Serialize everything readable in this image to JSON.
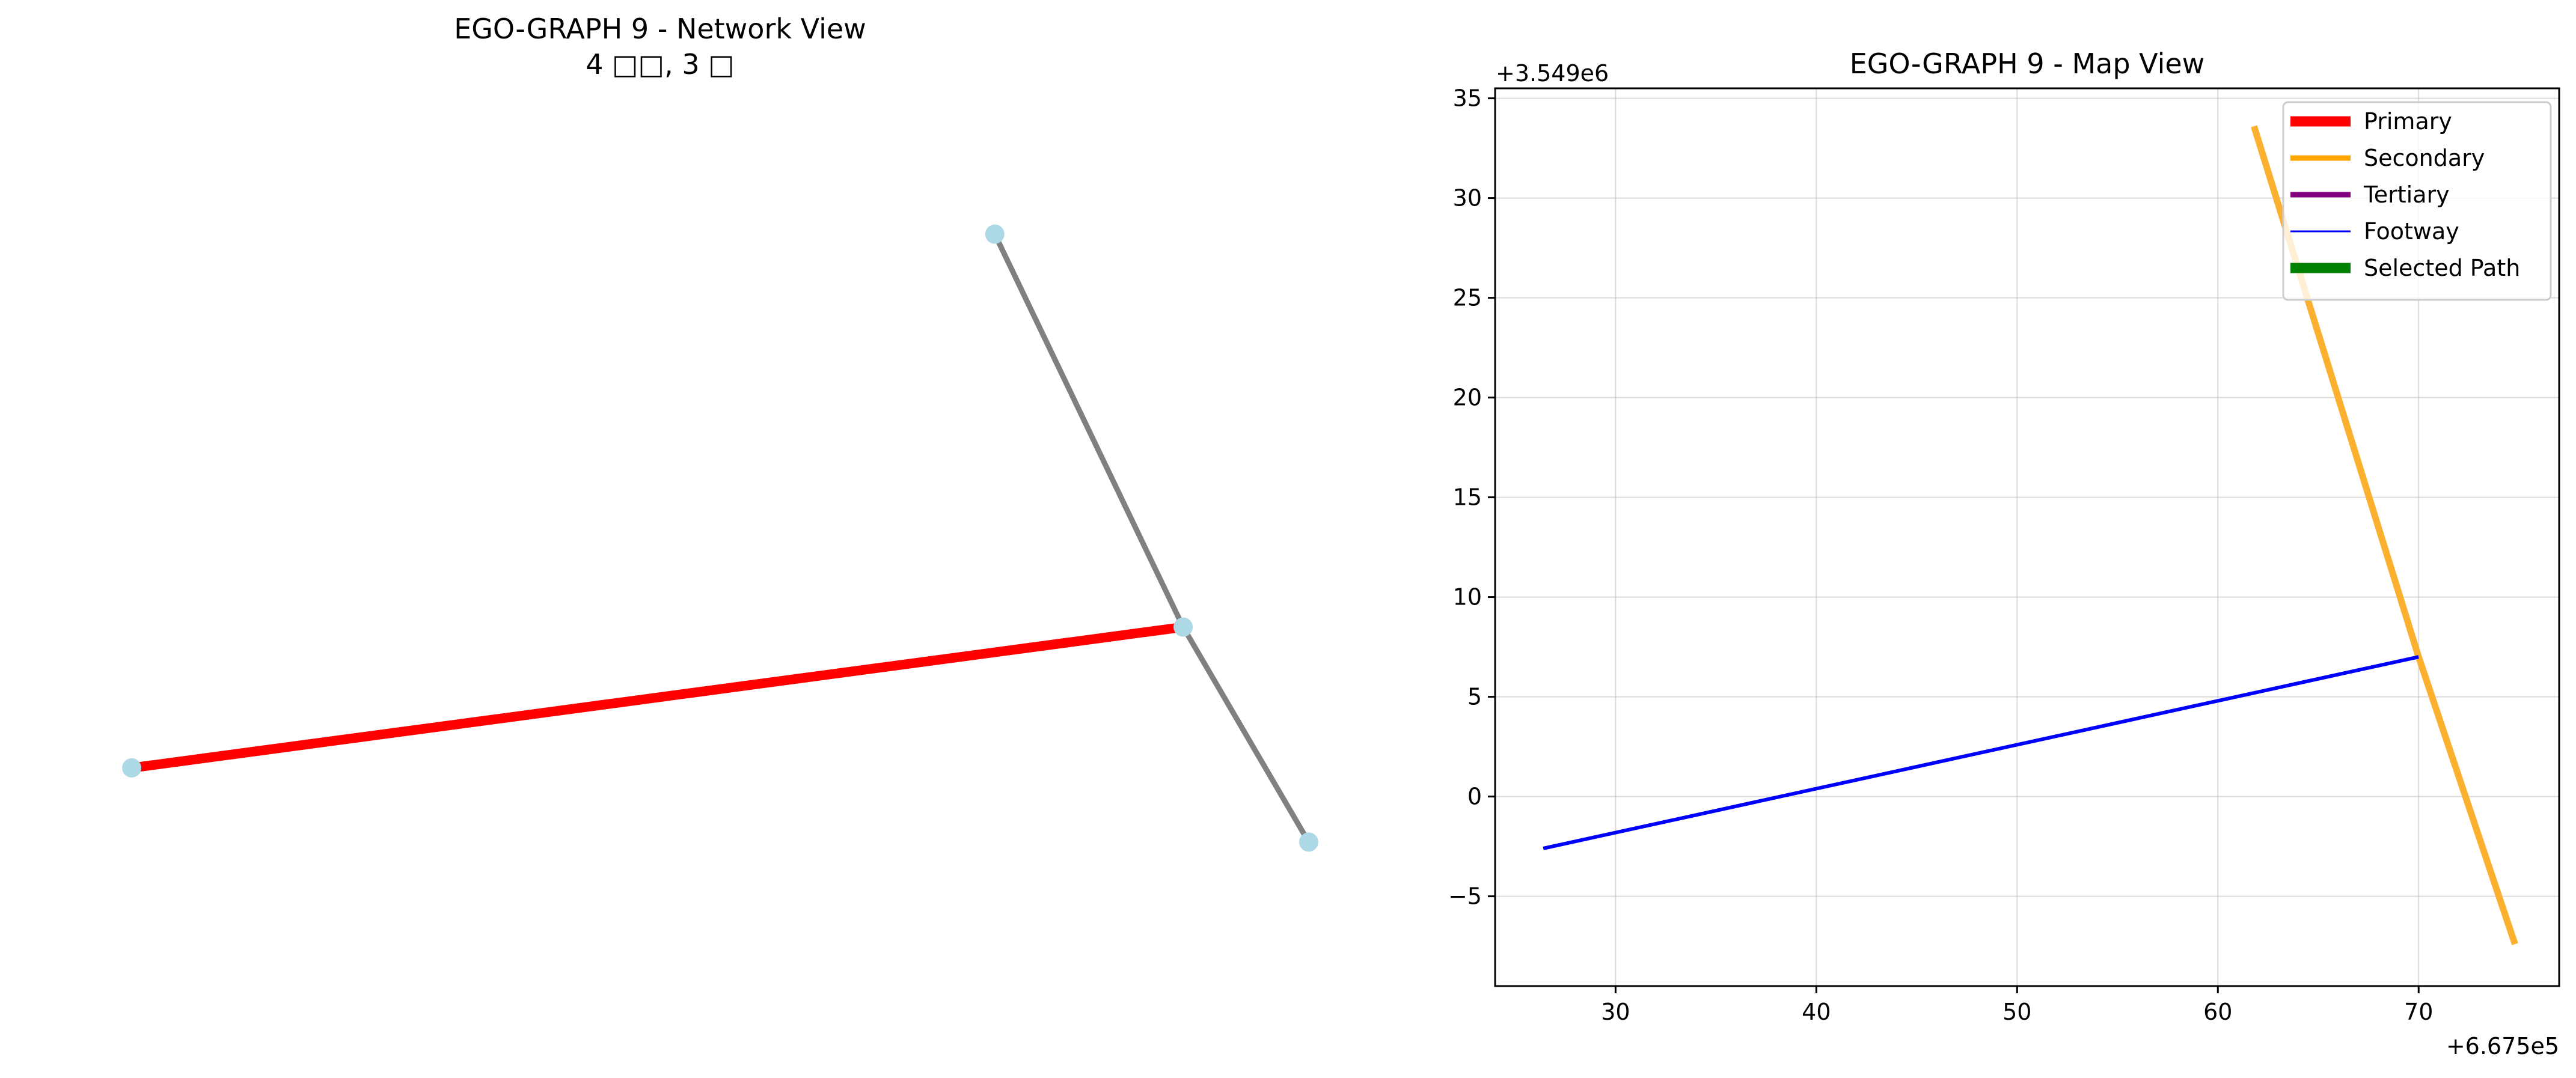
{
  "chart_data": [
    {
      "type": "network",
      "title": "EGO-GRAPH 9 - Network View",
      "subtitle": "4 □□, 3 □",
      "node_color": "#add8e6",
      "nodes": [
        {
          "id": "n1",
          "x": 0.09,
          "y": 0.0
        },
        {
          "id": "n2",
          "x": 0.76,
          "y": 0.19
        },
        {
          "id": "n3",
          "x": 0.64,
          "y": 0.72
        },
        {
          "id": "n4",
          "x": 0.84,
          "y": -0.1
        }
      ],
      "edges": [
        {
          "source": "n1",
          "target": "n2",
          "color": "#ff0000",
          "width": "thick"
        },
        {
          "source": "n3",
          "target": "n2",
          "color": "#808080",
          "width": "medium"
        },
        {
          "source": "n2",
          "target": "n4",
          "color": "#808080",
          "width": "medium"
        }
      ]
    },
    {
      "type": "line",
      "title": "EGO-GRAPH 9 - Map View",
      "xlim": [
        24,
        77
      ],
      "ylim": [
        -9.5,
        35.5
      ],
      "x_offset_label": "+6.675e5",
      "y_offset_label": "+3.549e6",
      "x_ticks": [
        30,
        40,
        50,
        60,
        70
      ],
      "y_ticks": [
        35,
        30,
        25,
        20,
        15,
        10,
        5,
        0,
        -5
      ],
      "y_tick_labels": [
        "35",
        "30",
        "25",
        "20",
        "15",
        "10",
        "5",
        "0",
        "−5"
      ],
      "grid": true,
      "legend_position": "top-right",
      "legend": [
        {
          "label": "Primary",
          "color": "#ff0000",
          "style": "thick"
        },
        {
          "label": "Secondary",
          "color": "#ffa500",
          "style": "medium"
        },
        {
          "label": "Tertiary",
          "color": "#800080",
          "style": "medium"
        },
        {
          "label": "Footway",
          "color": "#0000ff",
          "style": "thin"
        },
        {
          "label": "Selected Path",
          "color": "#008000",
          "style": "thick"
        }
      ],
      "series": [
        {
          "type": "secondary",
          "color": "#fbb12f",
          "points": [
            [
              61.8,
              33.6
            ],
            [
              70.0,
              7.0
            ],
            [
              74.8,
              -7.4
            ]
          ]
        },
        {
          "type": "footway",
          "color": "#0000ff",
          "points": [
            [
              26.4,
              -2.6
            ],
            [
              70.0,
              7.0
            ]
          ]
        }
      ]
    }
  ]
}
